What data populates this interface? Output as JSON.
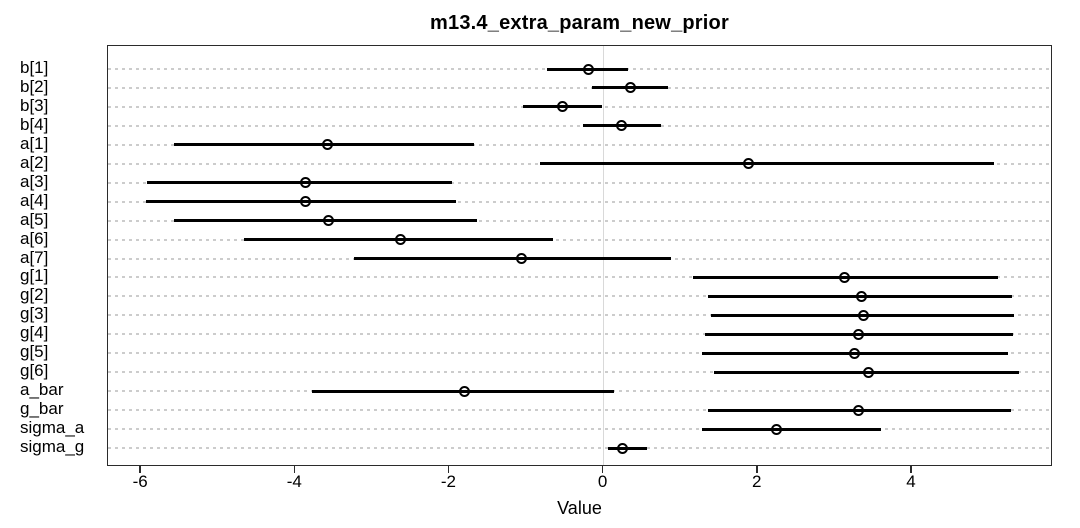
{
  "chart_data": {
    "type": "scatter",
    "subtype": "forest-plot-horizontal-intervals",
    "title": "m13.4_extra_param_new_prior",
    "xlabel": "Value",
    "ylabel": "",
    "xlim": [
      -6.43,
      5.83
    ],
    "xticks": [
      -6,
      -4,
      -2,
      0,
      2,
      4
    ],
    "grid": "dotted horizontal gridline per row, solid light vertical line at x=0",
    "legend_position": "none",
    "zero_line_x": 0,
    "marker": "open-circle",
    "colors": {
      "data": "#000000",
      "grid_line": "#cccccc",
      "zero_line": "#d9d9d9",
      "box_border": "#2b2b2b",
      "background": "#ffffff"
    },
    "params": [
      {
        "label": "b[1]",
        "lo": -0.73,
        "point": -0.19,
        "hi": 0.32
      },
      {
        "label": "b[2]",
        "lo": -0.15,
        "point": 0.35,
        "hi": 0.83
      },
      {
        "label": "b[3]",
        "lo": -1.05,
        "point": -0.54,
        "hi": -0.02
      },
      {
        "label": "b[4]",
        "lo": -0.27,
        "point": 0.23,
        "hi": 0.74
      },
      {
        "label": "a[1]",
        "lo": -5.58,
        "point": -3.58,
        "hi": -1.68
      },
      {
        "label": "a[2]",
        "lo": -0.83,
        "point": 1.88,
        "hi": 5.06
      },
      {
        "label": "a[3]",
        "lo": -5.92,
        "point": -3.87,
        "hi": -1.97
      },
      {
        "label": "a[4]",
        "lo": -5.94,
        "point": -3.87,
        "hi": -1.91
      },
      {
        "label": "a[5]",
        "lo": -5.57,
        "point": -3.57,
        "hi": -1.64
      },
      {
        "label": "a[6]",
        "lo": -4.67,
        "point": -2.63,
        "hi": -0.66
      },
      {
        "label": "a[7]",
        "lo": -3.24,
        "point": -1.06,
        "hi": 0.88
      },
      {
        "label": "g[1]",
        "lo": 1.16,
        "point": 3.13,
        "hi": 5.12
      },
      {
        "label": "g[2]",
        "lo": 1.35,
        "point": 3.35,
        "hi": 5.3
      },
      {
        "label": "g[3]",
        "lo": 1.39,
        "point": 3.37,
        "hi": 5.33
      },
      {
        "label": "g[4]",
        "lo": 1.32,
        "point": 3.31,
        "hi": 5.31
      },
      {
        "label": "g[5]",
        "lo": 1.27,
        "point": 3.26,
        "hi": 5.25
      },
      {
        "label": "g[6]",
        "lo": 1.43,
        "point": 3.43,
        "hi": 5.39
      },
      {
        "label": "a_bar",
        "lo": -3.78,
        "point": -1.81,
        "hi": 0.14
      },
      {
        "label": "g_bar",
        "lo": 1.36,
        "point": 3.31,
        "hi": 5.28
      },
      {
        "label": "sigma_a",
        "lo": 1.27,
        "point": 2.24,
        "hi": 3.6
      },
      {
        "label": "sigma_g",
        "lo": 0.06,
        "point": 0.25,
        "hi": 0.56
      }
    ]
  }
}
